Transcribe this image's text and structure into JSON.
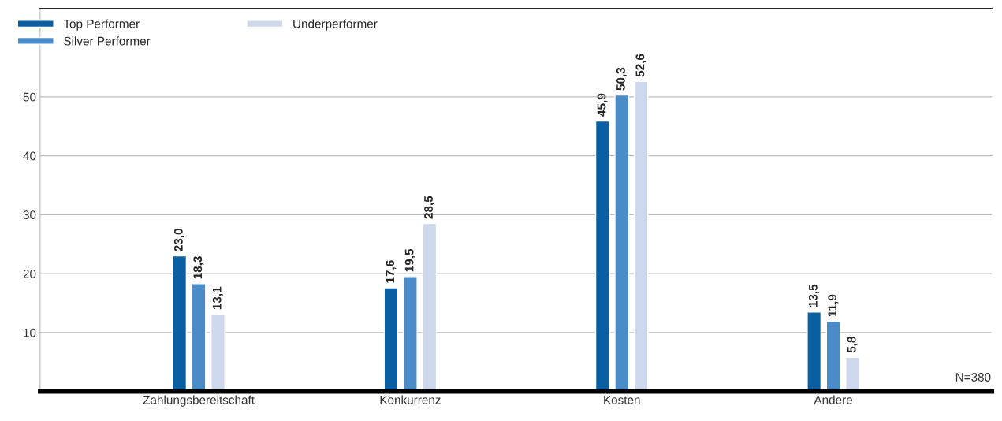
{
  "chart_data": {
    "type": "bar",
    "categories": [
      "Zahlungsbereitschaft",
      "Konkurrenz",
      "Kosten",
      "Andere"
    ],
    "series": [
      {
        "name": "Top Performer",
        "color": "#0a5fa3",
        "values": [
          23.0,
          17.6,
          45.9,
          13.5
        ],
        "value_labels": [
          "23,0",
          "17,6",
          "45,9",
          "13,5"
        ]
      },
      {
        "name": "Silver Performer",
        "color": "#4a8cc8",
        "values": [
          18.3,
          19.5,
          50.3,
          11.9
        ],
        "value_labels": [
          "18,3",
          "19,5",
          "50,3",
          "11,9"
        ]
      },
      {
        "name": "Underperformer",
        "color": "#cdd8ec",
        "values": [
          13.1,
          28.5,
          52.6,
          5.8
        ],
        "value_labels": [
          "13,1",
          "28,5",
          "52,6",
          "5,8"
        ]
      }
    ],
    "ylim": [
      0,
      65
    ],
    "yticks": [
      10,
      20,
      30,
      40,
      50
    ],
    "grid": "y",
    "legend": "top left",
    "annotations": [
      "N=380"
    ]
  }
}
